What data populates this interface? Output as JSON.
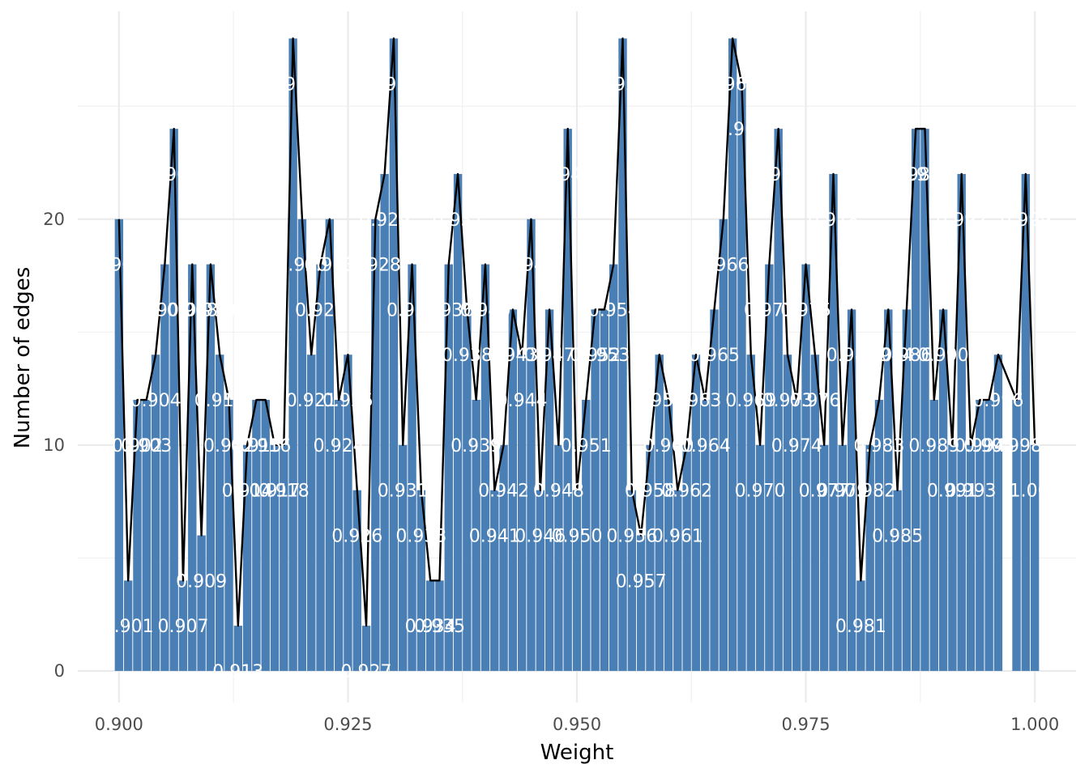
{
  "chart_data": {
    "type": "bar",
    "title": "",
    "xlabel": "Weight",
    "ylabel": "Number of edges",
    "xlim": [
      0.8955,
      1.0045
    ],
    "ylim": [
      -1.4,
      29.2
    ],
    "x_ticks": [
      0.9,
      0.925,
      0.95,
      0.975,
      1.0
    ],
    "x_tick_labels": [
      "0.900",
      "0.925",
      "0.950",
      "0.975",
      "1.000"
    ],
    "y_ticks": [
      0,
      10,
      20
    ],
    "y_tick_labels": [
      "0",
      "10",
      "20"
    ],
    "grid": true,
    "bar_color": "#4a7fb5",
    "line_color": "#000000",
    "label_color": "#ffffff",
    "x": [
      0.9,
      0.901,
      0.902,
      0.903,
      0.904,
      0.905,
      0.906,
      0.907,
      0.908,
      0.909,
      0.91,
      0.911,
      0.912,
      0.913,
      0.914,
      0.915,
      0.916,
      0.917,
      0.918,
      0.919,
      0.92,
      0.921,
      0.922,
      0.923,
      0.924,
      0.925,
      0.926,
      0.927,
      0.928,
      0.929,
      0.93,
      0.931,
      0.932,
      0.933,
      0.934,
      0.935,
      0.936,
      0.937,
      0.938,
      0.939,
      0.94,
      0.941,
      0.942,
      0.943,
      0.944,
      0.945,
      0.946,
      0.947,
      0.948,
      0.949,
      0.95,
      0.951,
      0.952,
      0.953,
      0.954,
      0.955,
      0.956,
      0.957,
      0.958,
      0.959,
      0.96,
      0.961,
      0.962,
      0.963,
      0.964,
      0.965,
      0.966,
      0.967,
      0.968,
      0.969,
      0.97,
      0.971,
      0.972,
      0.973,
      0.974,
      0.975,
      0.976,
      0.977,
      0.978,
      0.979,
      0.98,
      0.981,
      0.982,
      0.983,
      0.984,
      0.985,
      0.986,
      0.987,
      0.988,
      0.989,
      0.99,
      0.991,
      0.992,
      0.993,
      0.994,
      0.995,
      0.996,
      0.997,
      0.998,
      0.999,
      1.0
    ],
    "values": [
      20,
      4,
      12,
      12,
      14,
      18,
      24,
      4,
      18,
      6,
      18,
      14,
      12,
      2,
      10,
      12,
      12,
      10,
      10,
      28,
      20,
      14,
      18,
      20,
      12,
      14,
      8,
      2,
      20,
      22,
      28,
      10,
      18,
      8,
      4,
      4,
      18,
      22,
      16,
      12,
      18,
      8,
      10,
      16,
      14,
      20,
      8,
      16,
      10,
      24,
      8,
      12,
      16,
      16,
      18,
      28,
      8,
      6,
      10,
      14,
      12,
      8,
      10,
      14,
      12,
      16,
      20,
      28,
      26,
      14,
      10,
      18,
      24,
      14,
      12,
      18,
      14,
      10,
      22,
      10,
      16,
      4,
      10,
      12,
      16,
      8,
      16,
      24,
      24,
      12,
      16,
      10,
      22,
      10,
      12,
      12,
      14,
      null,
      12,
      22,
      10
    ],
    "labels": [
      "0.900",
      "0.901",
      "0.902",
      "0.903",
      "0.904",
      "0.905",
      "0.906",
      "0.907",
      "0.908",
      "0.909",
      "0.910",
      "0.911",
      "0.912",
      "0.913",
      "0.914",
      "0.915",
      "0.916",
      "0.917",
      "0.918",
      "0.919",
      "0.920",
      "0.921",
      "0.922",
      "0.923",
      "0.924",
      "0.925",
      "0.926",
      "0.927",
      "0.928",
      "0.929",
      "0.930",
      "0.931",
      "0.932",
      "0.933",
      "0.934",
      "0.935",
      "0.936",
      "0.937",
      "0.938",
      "0.939",
      "0.940",
      "0.941",
      "0.942",
      "0.943",
      "0.944",
      "0.945",
      "0.946",
      "0.947",
      "0.948",
      "0.949",
      "0.950",
      "0.951",
      "0.952",
      "0.953",
      "0.954",
      "0.955",
      "0.956",
      "0.957",
      "0.958",
      "0.959",
      "0.960",
      "0.961",
      "0.962",
      "0.963",
      "0.964",
      "0.965",
      "0.966",
      "0.967",
      "0.968",
      "0.969",
      "0.970",
      "0.971",
      "0.972",
      "0.973",
      "0.974",
      "0.975",
      "0.976",
      "0.977",
      "0.978",
      "0.979",
      "0.980",
      "0.981",
      "0.982",
      "0.983",
      "0.984",
      "0.985",
      "0.986",
      "0.987",
      "0.988",
      "0.989",
      "0.990",
      "0.991",
      "0.992",
      "0.993",
      "0.994",
      "0.995",
      "0.996",
      "0.997",
      "0.998",
      "0.999",
      "1.000"
    ]
  }
}
